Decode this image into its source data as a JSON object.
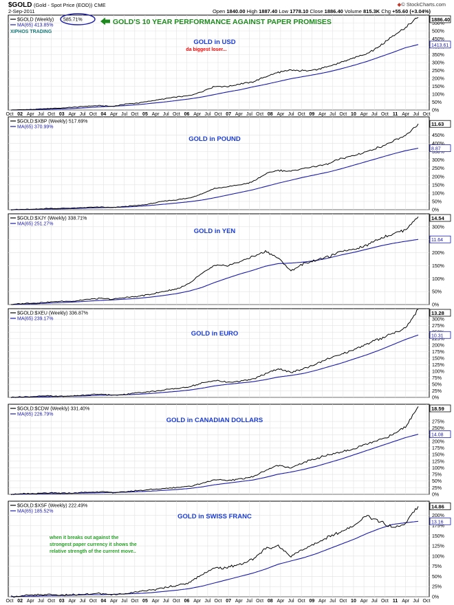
{
  "header": {
    "symbol": "$GOLD",
    "description": "(Gold - Spot Price (EOD))",
    "exchange": "CME",
    "date": "2-Sep-2011",
    "brand": "© StockCharts.com",
    "stats": [
      {
        "label": "Open",
        "value": "1840.00"
      },
      {
        "label": "High",
        "value": "1887.40"
      },
      {
        "label": "Low",
        "value": "1778.10"
      },
      {
        "label": "Close",
        "value": "1886.40"
      },
      {
        "label": "Volume",
        "value": "815.3K"
      },
      {
        "label": "Chg",
        "value": "+55.60 (+3.04%)"
      }
    ]
  },
  "colors": {
    "price": "#000000",
    "ma": "#1a1aa8",
    "title": "#1a3bd6",
    "headline": "#1e8a1e",
    "note": "#2ca02c",
    "red": "#ff0000",
    "grid": "#e2e2e2"
  },
  "chart_data": [
    {
      "type": "line",
      "legend": "$GOLD (Weekly) 585.71%",
      "legend_prefix": "$GOLD (Weekly)",
      "legend_value": "585.71%",
      "ma_legend": "MA(65) 413.85%",
      "title": "GOLD in USD",
      "headline": "GOLD'S 10 YEAR PERFORMANCE AGAINST PAPER PROMISES",
      "watermark": "XIPHOS TRADING",
      "annotation": "da biggest loser...",
      "yticks": [
        0,
        50,
        100,
        150,
        200,
        250,
        300,
        350,
        400,
        450,
        500,
        550
      ],
      "ylim": [
        0,
        600
      ],
      "last_price_label": "1886.40",
      "ma_label": "1413.61",
      "series": [
        {
          "name": "$GOLD (Weekly)",
          "values": [
            0,
            2,
            4,
            10,
            12,
            18,
            24,
            28,
            22,
            38,
            44,
            58,
            70,
            82,
            90,
            116,
            150,
            148,
            165,
            178,
            210,
            238,
            252,
            248,
            255,
            275,
            304,
            330,
            360,
            405,
            470,
            520,
            585.71
          ]
        },
        {
          "name": "MA(65)",
          "values": [
            0,
            1,
            2,
            5,
            7,
            10,
            15,
            20,
            24,
            28,
            34,
            42,
            50,
            60,
            70,
            82,
            98,
            114,
            128,
            146,
            162,
            180,
            198,
            212,
            226,
            242,
            262,
            284,
            308,
            336,
            364,
            394,
            413.85
          ]
        }
      ]
    },
    {
      "type": "line",
      "legend": "$GOLD:$XBP (Weekly) 517.69%",
      "ma_legend": "MA(65) 370.99%",
      "title": "GOLD in POUND",
      "yticks": [
        0,
        50,
        100,
        150,
        200,
        250,
        300,
        350,
        400,
        450
      ],
      "ylim": [
        0,
        560
      ],
      "last_price_label": "11.63",
      "ma_label": "8.87",
      "series": [
        {
          "name": "$GOLD:$XBP (Weekly)",
          "values": [
            0,
            2,
            3,
            8,
            8,
            10,
            14,
            16,
            12,
            20,
            26,
            36,
            52,
            60,
            70,
            96,
            128,
            138,
            150,
            168,
            215,
            238,
            232,
            250,
            262,
            278,
            310,
            328,
            352,
            378,
            410,
            445,
            517.69
          ]
        },
        {
          "name": "MA(65)",
          "values": [
            0,
            1,
            2,
            4,
            5,
            7,
            10,
            12,
            14,
            16,
            20,
            26,
            33,
            40,
            48,
            58,
            72,
            88,
            104,
            120,
            140,
            160,
            178,
            196,
            212,
            228,
            248,
            270,
            292,
            314,
            336,
            356,
            370.99
          ]
        }
      ]
    },
    {
      "type": "line",
      "legend": "$GOLD:$XJY (Weekly) 338.71%",
      "ma_legend": "MA(65) 251.27%",
      "title": "GOLD in YEN",
      "yticks": [
        0,
        50,
        100,
        150,
        200,
        250,
        300
      ],
      "ylim": [
        0,
        350
      ],
      "last_price_label": "14.54",
      "ma_label": "11.64",
      "series": [
        {
          "name": "$GOLD:$XJY (Weekly)",
          "values": [
            0,
            4,
            6,
            10,
            12,
            14,
            20,
            24,
            20,
            28,
            32,
            40,
            50,
            60,
            80,
            120,
            150,
            150,
            165,
            185,
            205,
            180,
            130,
            158,
            172,
            185,
            205,
            215,
            230,
            255,
            272,
            290,
            338.71
          ]
        },
        {
          "name": "MA(65)",
          "values": [
            0,
            2,
            3,
            6,
            8,
            10,
            13,
            16,
            18,
            21,
            24,
            29,
            35,
            42,
            52,
            66,
            85,
            102,
            118,
            132,
            148,
            158,
            160,
            164,
            170,
            180,
            192,
            202,
            214,
            226,
            236,
            244,
            251.27
          ]
        }
      ]
    },
    {
      "type": "line",
      "legend": "$GOLD:$XEU (Weekly) 336.87%",
      "ma_legend": "MA(65) 239.17%",
      "title": "GOLD in EURO",
      "yticks": [
        0,
        25,
        50,
        75,
        100,
        125,
        150,
        175,
        200,
        225,
        250,
        275,
        300
      ],
      "ylim": [
        0,
        340
      ],
      "last_price_label": "13.28",
      "ma_label": "10.31",
      "series": [
        {
          "name": "$GOLD:$XEU (Weekly)",
          "values": [
            0,
            2,
            4,
            6,
            4,
            6,
            10,
            12,
            8,
            12,
            18,
            22,
            28,
            34,
            40,
            55,
            65,
            58,
            62,
            70,
            90,
            110,
            95,
            110,
            130,
            150,
            165,
            185,
            205,
            225,
            245,
            265,
            336.87
          ]
        },
        {
          "name": "MA(65)",
          "values": [
            0,
            1,
            2,
            3,
            4,
            5,
            6,
            8,
            9,
            10,
            12,
            15,
            19,
            23,
            28,
            35,
            44,
            50,
            55,
            60,
            68,
            78,
            84,
            92,
            104,
            118,
            132,
            148,
            164,
            182,
            202,
            222,
            239.17
          ]
        }
      ]
    },
    {
      "type": "line",
      "legend": "$GOLD:$CDW (Weekly) 331.40%",
      "ma_legend": "MA(65) 226.79%",
      "title": "GOLD in CANADIAN DOLLARS",
      "yticks": [
        0,
        25,
        50,
        75,
        100,
        125,
        150,
        175,
        200,
        225,
        250,
        275
      ],
      "ylim": [
        0,
        340
      ],
      "last_price_label": "18.59",
      "ma_label": "14.08",
      "series": [
        {
          "name": "$GOLD:$CDW (Weekly)",
          "values": [
            0,
            2,
            3,
            5,
            4,
            5,
            8,
            10,
            6,
            10,
            14,
            18,
            22,
            26,
            30,
            42,
            55,
            52,
            58,
            66,
            90,
            110,
            100,
            120,
            135,
            150,
            160,
            172,
            190,
            205,
            225,
            255,
            331.4
          ]
        },
        {
          "name": "MA(65)",
          "values": [
            0,
            1,
            2,
            3,
            3,
            4,
            5,
            6,
            7,
            8,
            10,
            12,
            15,
            18,
            22,
            28,
            36,
            42,
            48,
            54,
            64,
            76,
            84,
            94,
            106,
            120,
            134,
            150,
            166,
            182,
            198,
            214,
            226.79
          ]
        }
      ]
    },
    {
      "type": "line",
      "legend": "$GOLD:$XSF (Weekly) 222.49%",
      "ma_legend": "MA(65) 185.52%",
      "title": "GOLD in SWISS FRANC",
      "note": "when it breaks out against the strongest paper currency it shows the relative strength of the current move..",
      "note_lines": [
        "when it breaks out against the",
        "strongest paper currency it shows the",
        "relative strength of the current move.."
      ],
      "yticks": [
        0,
        25,
        50,
        75,
        100,
        125,
        150,
        175,
        200
      ],
      "ylim": [
        0,
        235
      ],
      "last_price_label": "14.86",
      "ma_label": "13.16",
      "series": [
        {
          "name": "$GOLD:$XSF (Weekly)",
          "values": [
            0,
            3,
            4,
            6,
            4,
            5,
            6,
            8,
            5,
            8,
            12,
            16,
            22,
            28,
            34,
            55,
            70,
            72,
            80,
            92,
            118,
            125,
            100,
            118,
            132,
            148,
            160,
            175,
            200,
            185,
            170,
            180,
            222.49
          ]
        },
        {
          "name": "MA(65)",
          "values": [
            0,
            1,
            2,
            3,
            3,
            4,
            5,
            5,
            6,
            7,
            8,
            10,
            13,
            16,
            20,
            26,
            34,
            42,
            50,
            58,
            68,
            80,
            88,
            96,
            106,
            118,
            130,
            142,
            156,
            168,
            178,
            182,
            185.52
          ]
        }
      ]
    }
  ],
  "x_axis": {
    "labels": [
      "Oct",
      "02",
      "Apr",
      "Jul",
      "Oct",
      "03",
      "Apr",
      "Jul",
      "Oct",
      "04",
      "Apr",
      "Jul",
      "Oct",
      "05",
      "Apr",
      "Jul",
      "Oct",
      "06",
      "Apr",
      "Jul",
      "Oct",
      "07",
      "Apr",
      "Jul",
      "Oct",
      "08",
      "Apr",
      "Jul",
      "Oct",
      "09",
      "Apr",
      "Jul",
      "Oct",
      "10",
      "Apr",
      "Jul",
      "Oct",
      "11",
      "Apr",
      "Jul",
      "Oct"
    ]
  }
}
